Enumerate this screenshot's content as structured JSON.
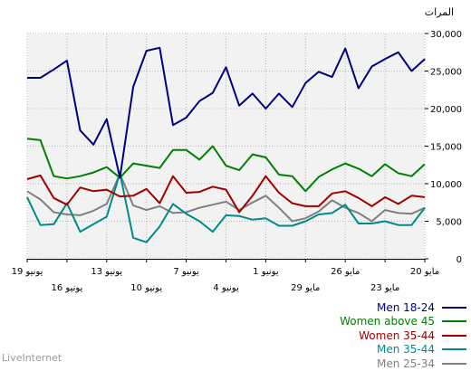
{
  "brand": "LiveInternet",
  "chart_data": {
    "type": "line",
    "ylabel": "المرات",
    "ylim": [
      0,
      30000
    ],
    "yticks": [
      0,
      5000,
      10000,
      15000,
      20000,
      25000,
      30000
    ],
    "ytick_labels": [
      "0",
      "5,000",
      "10,000",
      "15,000",
      "20,000",
      "25,000",
      "30,000"
    ],
    "x_dates": [
      "2013-05-20",
      "2013-05-21",
      "2013-05-22",
      "2013-05-23",
      "2013-05-24",
      "2013-05-25",
      "2013-05-26",
      "2013-05-27",
      "2013-05-28",
      "2013-05-29",
      "2013-05-30",
      "2013-05-31",
      "2013-06-01",
      "2013-06-02",
      "2013-06-03",
      "2013-06-04",
      "2013-06-05",
      "2013-06-06",
      "2013-06-07",
      "2013-06-08",
      "2013-06-09",
      "2013-06-10",
      "2013-06-11",
      "2013-06-12",
      "2013-06-13",
      "2013-06-14",
      "2013-06-15",
      "2013-06-16",
      "2013-06-17",
      "2013-06-18",
      "2013-06-19"
    ],
    "xtick_labels_row1": [
      "20 مايو",
      "26 مايو",
      "1 يونيو",
      "7 يونيو",
      "13 يونيو",
      "19 يونيو"
    ],
    "xtick_labels_row2": [
      "23 مايو",
      "29 مايو",
      "4 يونيو",
      "10 يونيو",
      "16 يونيو"
    ],
    "grid": true,
    "legend_position": "bottom-right",
    "series": [
      {
        "name": "Men 18-24",
        "color": "#00007f",
        "values": [
          26600,
          25000,
          27500,
          26600,
          25600,
          22700,
          28000,
          24200,
          24900,
          23400,
          20200,
          22000,
          20000,
          22000,
          20400,
          25500,
          22100,
          21000,
          18800,
          17800,
          28100,
          27700,
          22900,
          10800,
          18600,
          15200,
          17100,
          26400,
          25200,
          24100,
          24100
        ]
      },
      {
        "name": "Women above 45",
        "color": "#008000",
        "values": [
          12600,
          11000,
          11400,
          12600,
          11000,
          12000,
          12700,
          11900,
          10900,
          9000,
          11000,
          11200,
          13500,
          13900,
          11800,
          12400,
          15000,
          13200,
          14500,
          14500,
          12100,
          12400,
          12700,
          10800,
          12200,
          11500,
          11000,
          10700,
          11000,
          15800,
          16000
        ]
      },
      {
        "name": "Women 35-44",
        "color": "#a00000",
        "values": [
          8200,
          8400,
          7300,
          8200,
          7000,
          8100,
          9000,
          8700,
          7000,
          7000,
          7400,
          8800,
          11000,
          8400,
          6200,
          9200,
          9600,
          8900,
          8800,
          11000,
          7400,
          9300,
          8400,
          8300,
          9200,
          9000,
          9500,
          7200,
          8100,
          11100,
          10600
        ]
      },
      {
        "name": "Men 35-44",
        "color": "#008b8b",
        "values": [
          6800,
          4500,
          4500,
          5000,
          4700,
          4700,
          7200,
          6100,
          5900,
          5000,
          4400,
          4400,
          5400,
          5200,
          5700,
          5800,
          3600,
          5000,
          6000,
          7300,
          4300,
          2200,
          2800,
          11400,
          5600,
          4600,
          3600,
          7400,
          4600,
          4500,
          8200
        ]
      },
      {
        "name": "Men 25-34",
        "color": "#808080",
        "values": [
          6800,
          6000,
          6100,
          6500,
          5000,
          6100,
          6800,
          7800,
          6300,
          5400,
          5000,
          6800,
          8400,
          7500,
          6500,
          7600,
          7200,
          6800,
          6200,
          6100,
          7000,
          6500,
          7100,
          11300,
          7300,
          6400,
          5800,
          5900,
          6200,
          7900,
          9000
        ]
      }
    ]
  }
}
